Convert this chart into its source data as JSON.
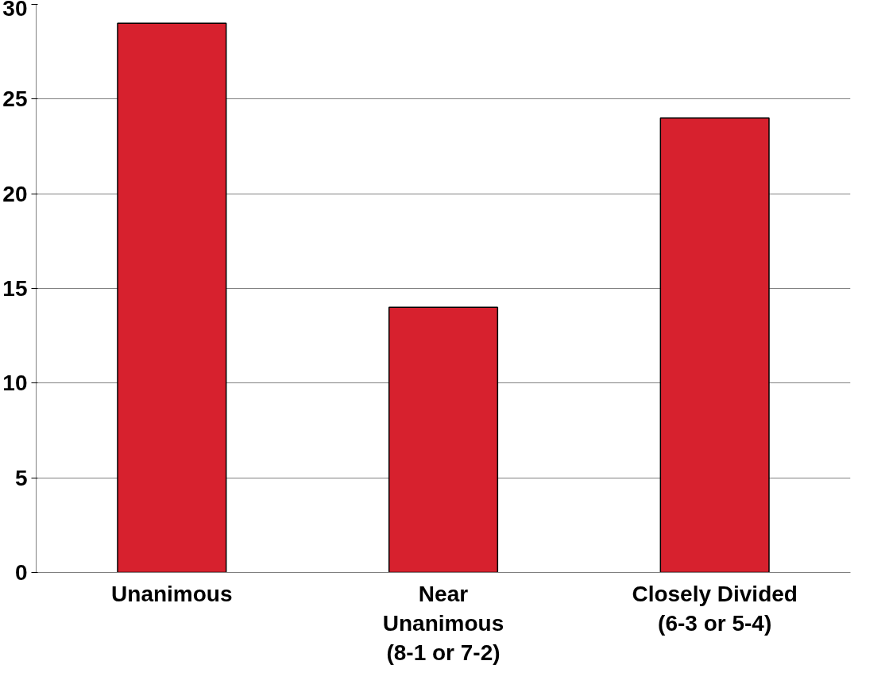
{
  "chart_data": {
    "type": "bar",
    "categories": [
      "Unanimous",
      "Near\nUnanimous\n(8-1 or 7-2)",
      "Closely Divided\n(6-3 or 5-4)"
    ],
    "values": [
      29,
      14,
      24
    ],
    "color": "#d7212e",
    "ylim": [
      0,
      30
    ],
    "yticks": [
      0,
      5,
      10,
      15,
      20,
      25,
      30
    ],
    "grid": "y"
  }
}
